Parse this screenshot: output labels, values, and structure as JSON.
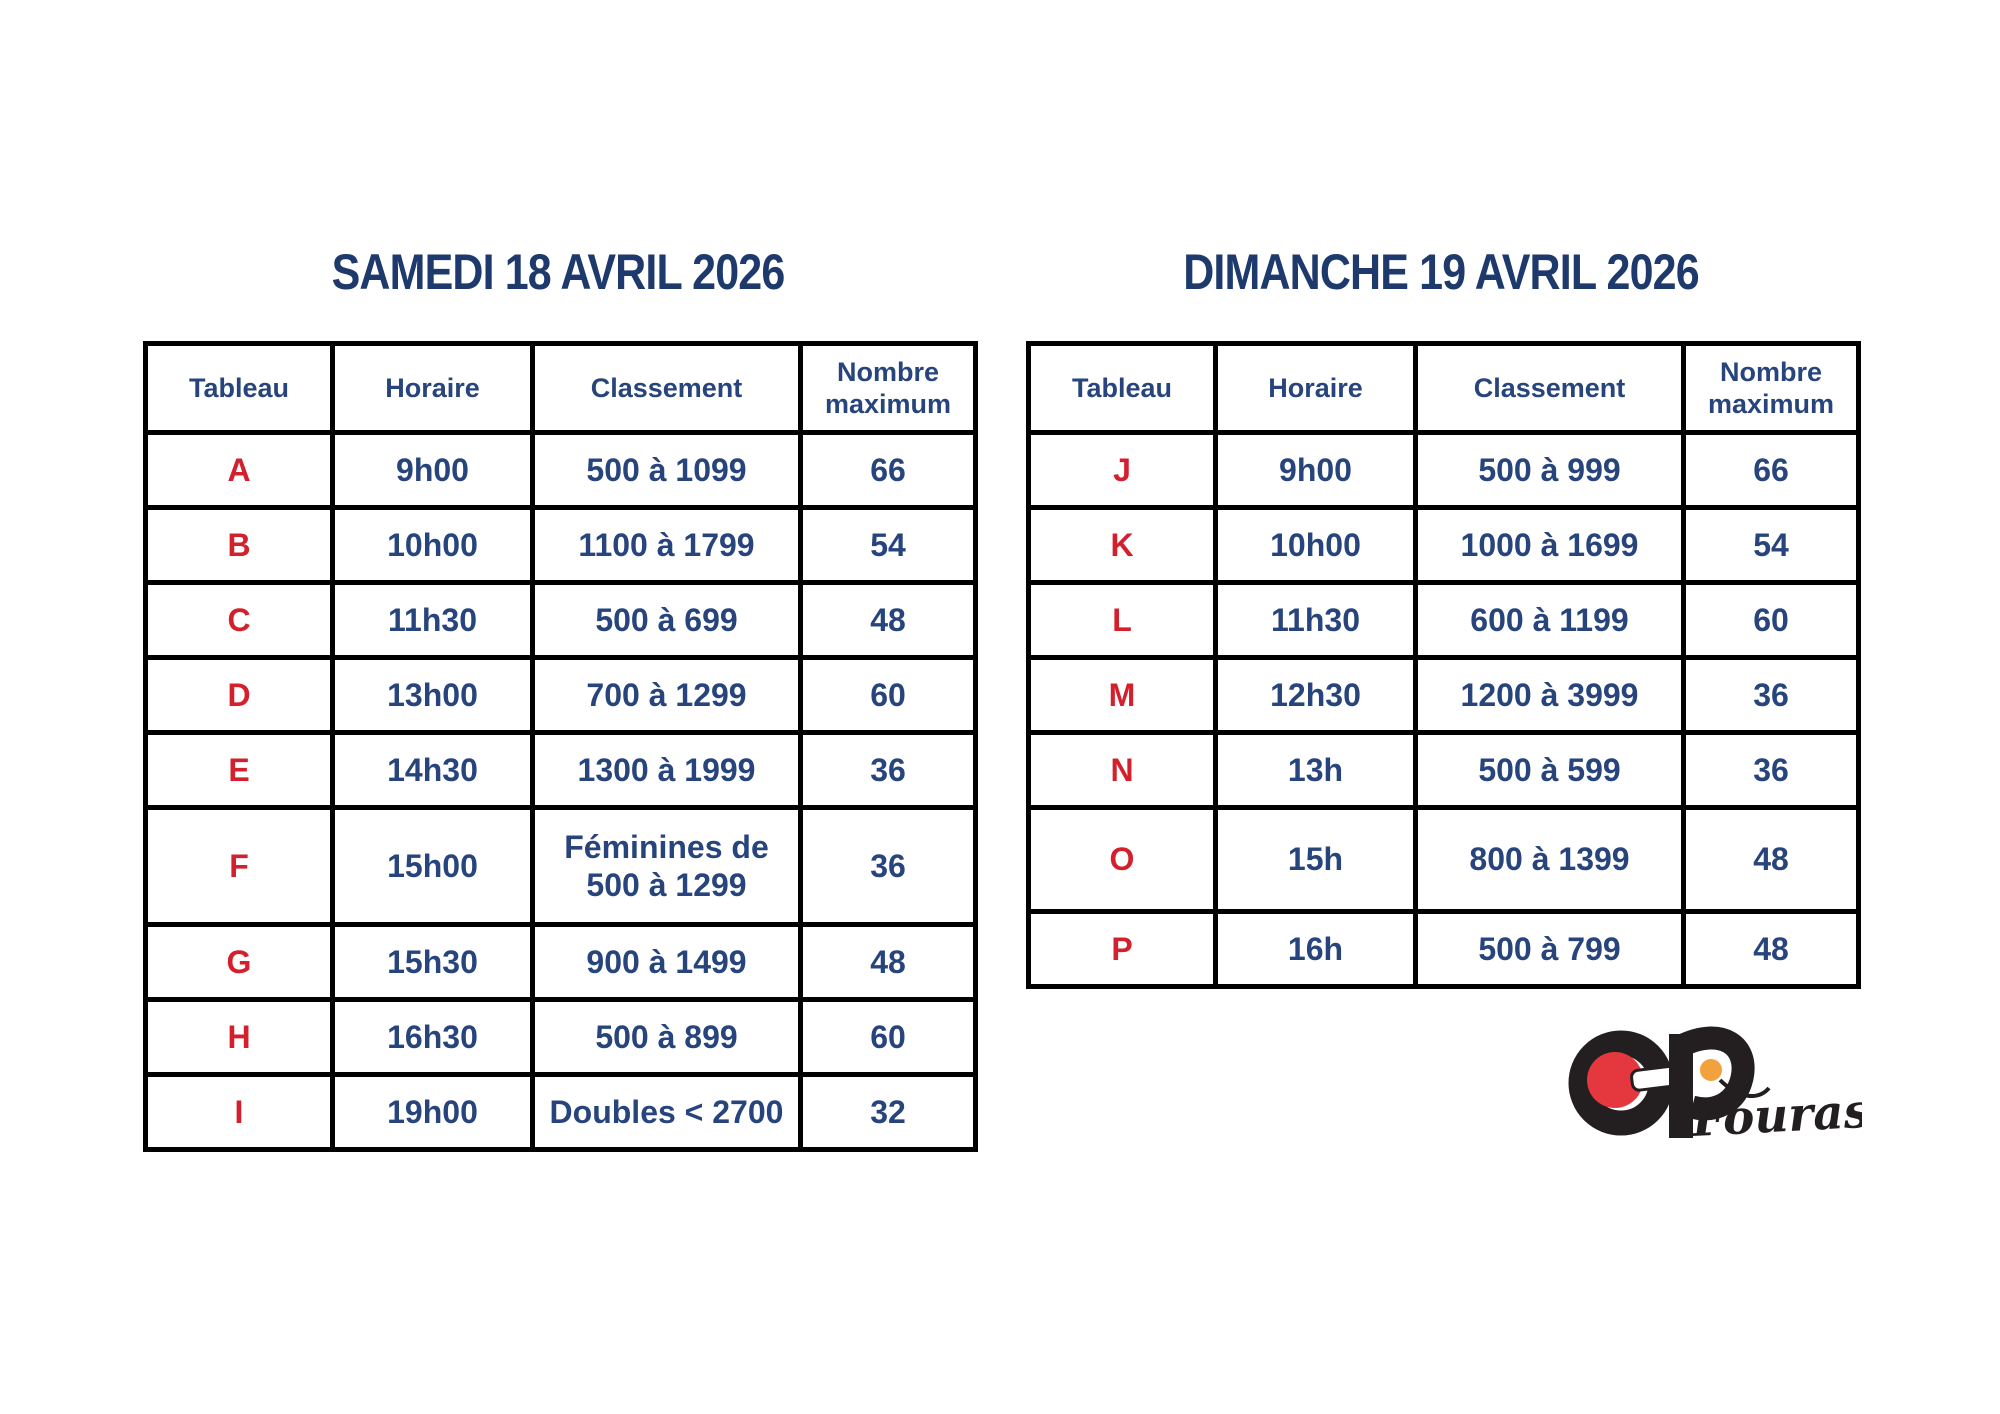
{
  "titles": {
    "saturday": "SAMEDI 18 AVRIL 2026",
    "sunday": "DIMANCHE 19 AVRIL 2026"
  },
  "headers": [
    "Tableau",
    "Horaire",
    "Classement",
    "Nombre maximum"
  ],
  "saturday_rows": [
    [
      "A",
      "9h00",
      "500 à 1099",
      "66"
    ],
    [
      "B",
      "10h00",
      "1100 à 1799",
      "54"
    ],
    [
      "C",
      "11h30",
      "500 à 699",
      "48"
    ],
    [
      "D",
      "13h00",
      "700 à 1299",
      "60"
    ],
    [
      "E",
      "14h30",
      "1300 à 1999",
      "36"
    ],
    [
      "F",
      "15h00",
      "Féminines de 500 à 1299",
      "36"
    ],
    [
      "G",
      "15h30",
      "900 à 1499",
      "48"
    ],
    [
      "H",
      "16h30",
      "500 à 899",
      "60"
    ],
    [
      "I",
      "19h00",
      "Doubles < 2700",
      "32"
    ]
  ],
  "sunday_rows": [
    [
      "J",
      "9h00",
      "500 à 999",
      "66"
    ],
    [
      "K",
      "10h00",
      "1000 à 1699",
      "54"
    ],
    [
      "L",
      "11h30",
      "600 à 1199",
      "60"
    ],
    [
      "M",
      "12h30",
      "1200 à 3999",
      "36"
    ],
    [
      "N",
      "13h",
      "500 à 599",
      "36"
    ],
    [
      "O",
      "15h",
      "800 à 1399",
      "48"
    ],
    [
      "P",
      "16h",
      "500 à 799",
      "48"
    ]
  ],
  "logo": {
    "fouras": "Fouras"
  },
  "colors": {
    "text_navy": "#27457C",
    "title_navy": "#1E3A6D",
    "letter_red": "#D4202C",
    "border_black": "#000000",
    "logo_black": "#231F20",
    "logo_red": "#E5383E",
    "logo_orange": "#F2A13C"
  }
}
